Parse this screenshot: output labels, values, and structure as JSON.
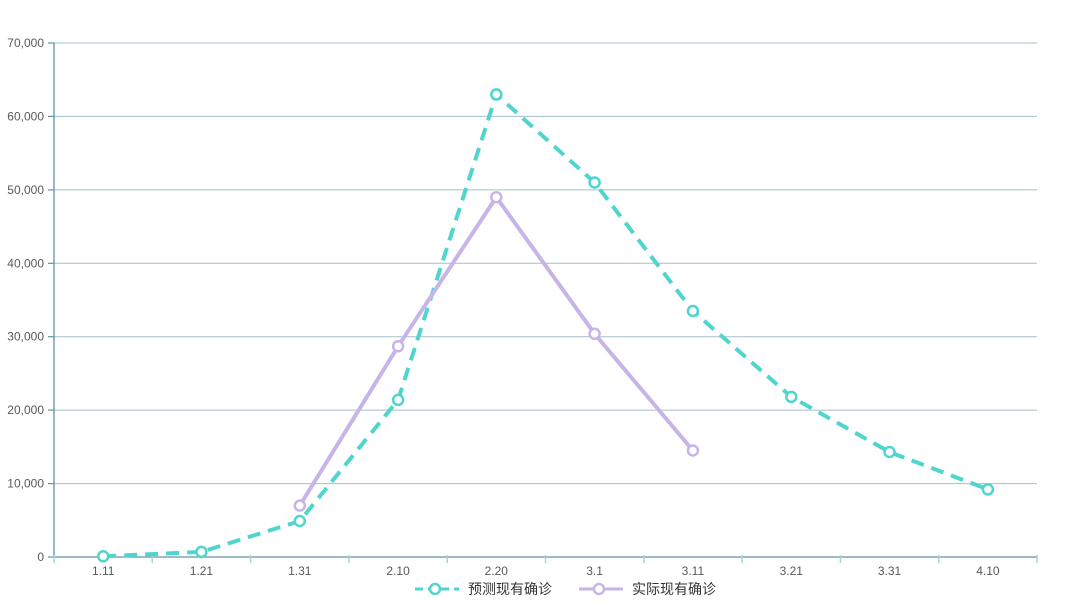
{
  "chart_data": {
    "type": "line",
    "title": "",
    "xlabel": "",
    "ylabel": "",
    "categories": [
      "1.11",
      "1.21",
      "1.31",
      "2.10",
      "2.20",
      "3.1",
      "3.11",
      "3.21",
      "3.31",
      "4.10"
    ],
    "series": [
      {
        "name": "预测现有确诊",
        "color": "#50d5ce",
        "line_style": "dashed",
        "marker": "circle",
        "values": [
          100,
          700,
          4900,
          21400,
          63000,
          51000,
          33500,
          21800,
          14300,
          9200
        ]
      },
      {
        "name": "实际现有确诊",
        "color": "#c6b5e8",
        "line_style": "solid",
        "marker": "circle",
        "values": [
          null,
          null,
          7000,
          28700,
          49000,
          30400,
          14500,
          null,
          null,
          null
        ]
      }
    ],
    "ylim": [
      0,
      70000
    ],
    "y_tick_step": 10000,
    "y_tick_labels": [
      "0",
      "10,000",
      "20,000",
      "30,000",
      "40,000",
      "50,000",
      "60,000",
      "70,000"
    ],
    "grid": true,
    "legend_position": "bottom",
    "colors": {
      "axis_line": "#5f93a4",
      "grid_line": "#8fb0bb",
      "x_tick": "#9fd6da",
      "axis_label": "#55595e",
      "legend_text": "#333333",
      "marker_fill": "#ffffff",
      "background": "#ffffff"
    }
  }
}
